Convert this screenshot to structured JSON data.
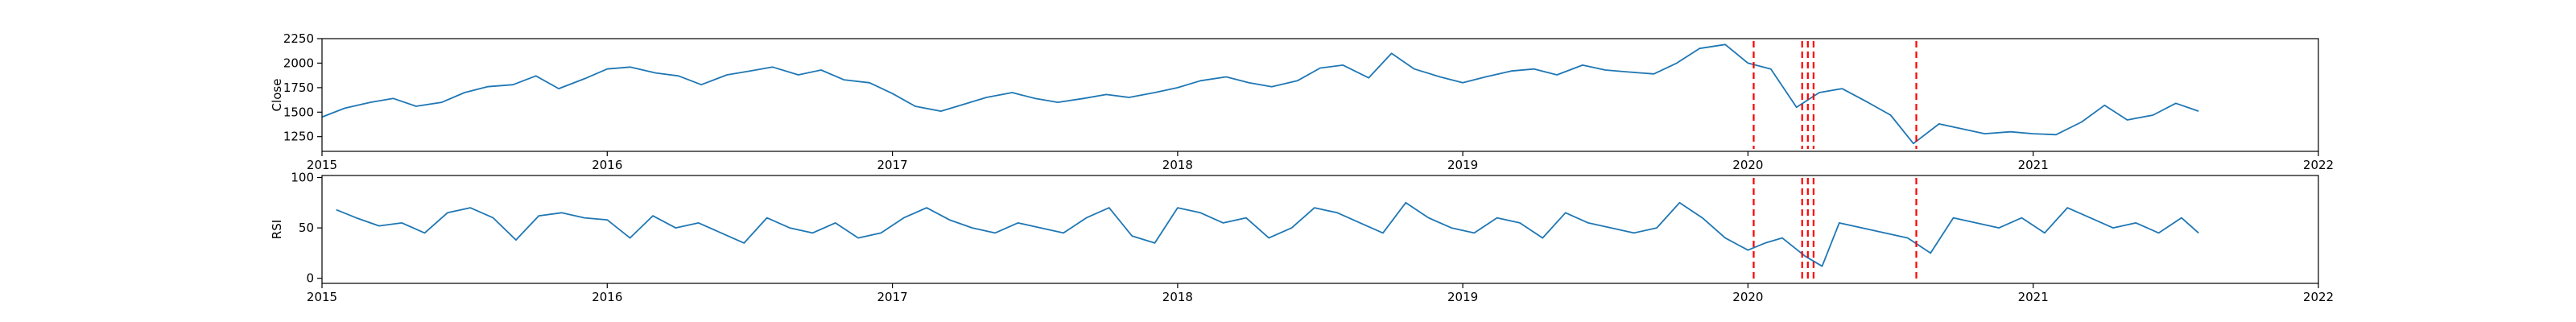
{
  "chart_data": [
    {
      "type": "line",
      "ylabel": "Close",
      "xlim": [
        2015.0,
        2022.0
      ],
      "ylim": [
        1100,
        2250
      ],
      "x_ticks": [
        {
          "value": 2015,
          "label": "2015"
        },
        {
          "value": 2016,
          "label": "2016"
        },
        {
          "value": 2017,
          "label": "2017"
        },
        {
          "value": 2018,
          "label": "2018"
        },
        {
          "value": 2019,
          "label": "2019"
        },
        {
          "value": 2020,
          "label": "2020"
        },
        {
          "value": 2021,
          "label": "2021"
        },
        {
          "value": 2022,
          "label": "2022"
        }
      ],
      "y_ticks": [
        {
          "value": 1250,
          "label": "1250"
        },
        {
          "value": 1500,
          "label": "1500"
        },
        {
          "value": 1750,
          "label": "1750"
        },
        {
          "value": 2000,
          "label": "2000"
        },
        {
          "value": 2250,
          "label": "2250"
        }
      ],
      "grid": false,
      "line_color": "#1f77b4",
      "series": [
        {
          "x": [
            2015.0,
            2015.08,
            2015.17,
            2015.25,
            2015.33,
            2015.42,
            2015.5,
            2015.58,
            2015.67,
            2015.75,
            2015.83,
            2015.92,
            2016.0,
            2016.08,
            2016.17,
            2016.25,
            2016.33,
            2016.42,
            2016.5,
            2016.58,
            2016.67,
            2016.75,
            2016.83,
            2016.92,
            2017.0,
            2017.08,
            2017.17,
            2017.25,
            2017.33,
            2017.42,
            2017.5,
            2017.58,
            2017.67,
            2017.75,
            2017.83,
            2017.92,
            2018.0,
            2018.08,
            2018.17,
            2018.25,
            2018.33,
            2018.42,
            2018.5,
            2018.58,
            2018.67,
            2018.75,
            2018.83,
            2018.92,
            2019.0,
            2019.08,
            2019.17,
            2019.25,
            2019.33,
            2019.42,
            2019.5,
            2019.58,
            2019.67,
            2019.75,
            2019.83,
            2019.92,
            2020.0,
            2020.08,
            2020.17,
            2020.25,
            2020.33,
            2020.42,
            2020.5,
            2020.58,
            2020.67,
            2020.75,
            2020.83,
            2020.92,
            2021.0,
            2021.08,
            2021.17,
            2021.25,
            2021.33,
            2021.42,
            2021.5,
            2021.58
          ],
          "y": [
            1450,
            1540,
            1600,
            1640,
            1560,
            1600,
            1700,
            1760,
            1780,
            1870,
            1740,
            1840,
            1940,
            1960,
            1900,
            1870,
            1780,
            1880,
            1920,
            1960,
            1880,
            1930,
            1830,
            1800,
            1690,
            1560,
            1510,
            1580,
            1650,
            1700,
            1640,
            1600,
            1640,
            1680,
            1650,
            1700,
            1750,
            1820,
            1860,
            1800,
            1760,
            1820,
            1950,
            1980,
            1850,
            2100,
            1940,
            1860,
            1800,
            1860,
            1920,
            1940,
            1880,
            1980,
            1930,
            1910,
            1890,
            2000,
            2150,
            2190,
            2000,
            1940,
            1550,
            1700,
            1740,
            1600,
            1470,
            1180,
            1380,
            1330,
            1280,
            1300,
            1280,
            1270,
            1400,
            1570,
            1420,
            1470,
            1590,
            1510
          ]
        }
      ],
      "markers": [
        2020.02,
        2020.19,
        2020.21,
        2020.23,
        2020.59
      ],
      "marker_color": "#ff0000"
    },
    {
      "type": "line",
      "ylabel": "RSI",
      "xlim": [
        2015.0,
        2022.0
      ],
      "ylim": [
        -5,
        102
      ],
      "x_ticks": [
        {
          "value": 2015,
          "label": "2015"
        },
        {
          "value": 2016,
          "label": "2016"
        },
        {
          "value": 2017,
          "label": "2017"
        },
        {
          "value": 2018,
          "label": "2018"
        },
        {
          "value": 2019,
          "label": "2019"
        },
        {
          "value": 2020,
          "label": "2020"
        },
        {
          "value": 2021,
          "label": "2021"
        },
        {
          "value": 2022,
          "label": "2022"
        }
      ],
      "y_ticks": [
        {
          "value": 0,
          "label": "0"
        },
        {
          "value": 50,
          "label": "50"
        },
        {
          "value": 100,
          "label": "100"
        }
      ],
      "grid": false,
      "line_color": "#1f77b4",
      "series": [
        {
          "x": [
            2015.05,
            2015.12,
            2015.2,
            2015.28,
            2015.36,
            2015.44,
            2015.52,
            2015.6,
            2015.68,
            2015.76,
            2015.84,
            2015.92,
            2016.0,
            2016.08,
            2016.16,
            2016.24,
            2016.32,
            2016.4,
            2016.48,
            2016.56,
            2016.64,
            2016.72,
            2016.8,
            2016.88,
            2016.96,
            2017.04,
            2017.12,
            2017.2,
            2017.28,
            2017.36,
            2017.44,
            2017.52,
            2017.6,
            2017.68,
            2017.76,
            2017.84,
            2017.92,
            2018.0,
            2018.08,
            2018.16,
            2018.24,
            2018.32,
            2018.4,
            2018.48,
            2018.56,
            2018.64,
            2018.72,
            2018.8,
            2018.88,
            2018.96,
            2019.04,
            2019.12,
            2019.2,
            2019.28,
            2019.36,
            2019.44,
            2019.52,
            2019.6,
            2019.68,
            2019.76,
            2019.84,
            2019.92,
            2020.0,
            2020.06,
            2020.12,
            2020.2,
            2020.26,
            2020.32,
            2020.4,
            2020.48,
            2020.56,
            2020.64,
            2020.72,
            2020.8,
            2020.88,
            2020.96,
            2021.04,
            2021.12,
            2021.2,
            2021.28,
            2021.36,
            2021.44,
            2021.52,
            2021.58
          ],
          "y": [
            68,
            60,
            52,
            55,
            45,
            65,
            70,
            60,
            38,
            62,
            65,
            60,
            58,
            40,
            62,
            50,
            55,
            45,
            35,
            60,
            50,
            45,
            55,
            40,
            45,
            60,
            70,
            58,
            50,
            45,
            55,
            50,
            45,
            60,
            70,
            42,
            35,
            70,
            65,
            55,
            60,
            40,
            50,
            70,
            65,
            55,
            45,
            75,
            60,
            50,
            45,
            60,
            55,
            40,
            65,
            55,
            50,
            45,
            50,
            75,
            60,
            40,
            28,
            35,
            40,
            22,
            12,
            55,
            50,
            45,
            40,
            25,
            60,
            55,
            50,
            60,
            45,
            70,
            60,
            50,
            55,
            45,
            60,
            45
          ]
        }
      ],
      "markers": [
        2020.02,
        2020.19,
        2020.21,
        2020.23,
        2020.59
      ],
      "marker_color": "#ff0000"
    }
  ]
}
